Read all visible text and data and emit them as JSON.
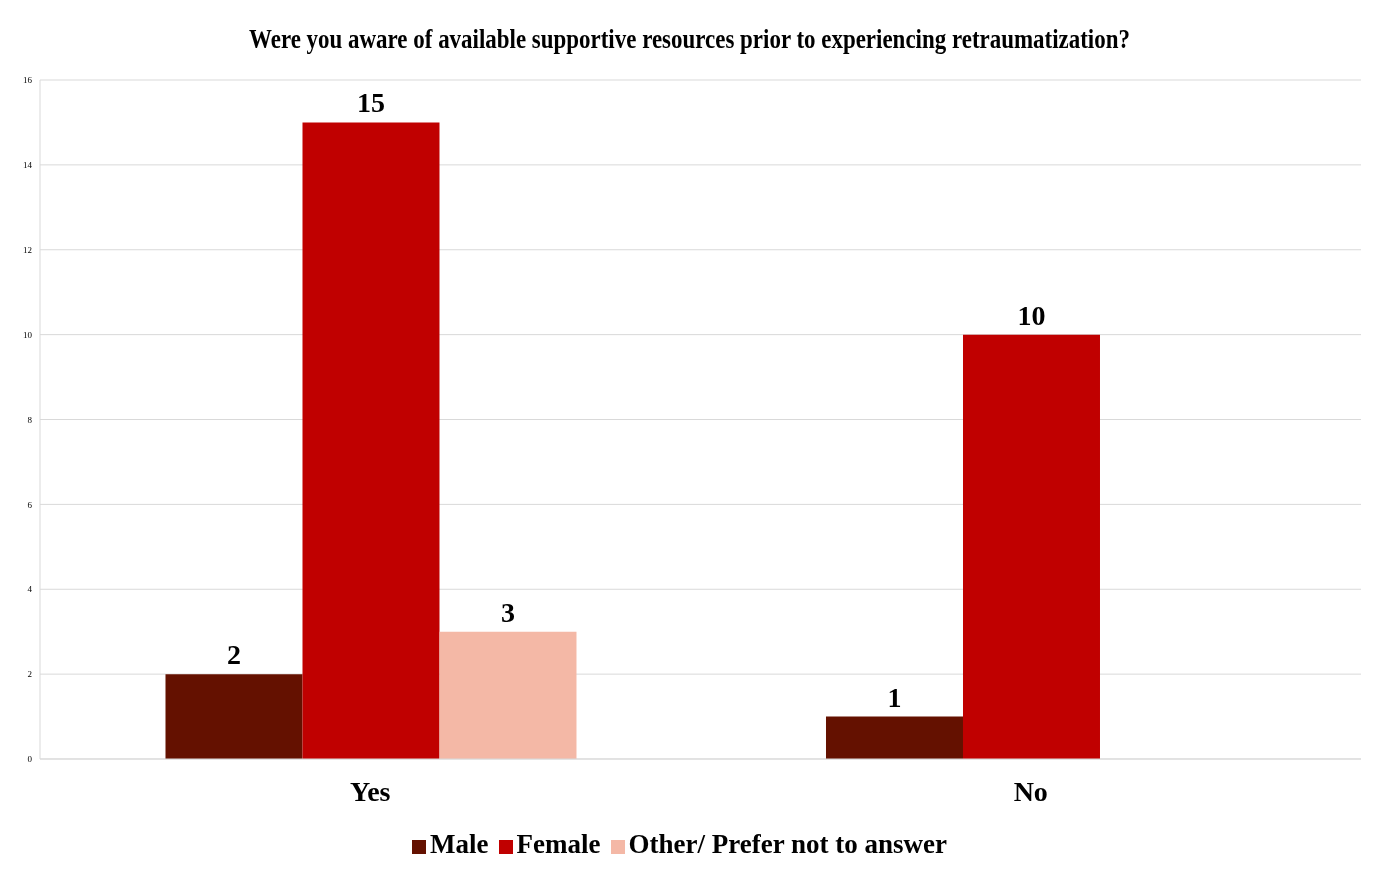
{
  "chart_data": {
    "type": "bar",
    "title": "Were you aware of available supportive resources prior to experiencing retraumatization?",
    "categories": [
      "Yes",
      "No"
    ],
    "series": [
      {
        "name": "Male",
        "color": "#641100",
        "values": [
          2,
          1
        ]
      },
      {
        "name": "Female",
        "color": "#c00000",
        "values": [
          15,
          10
        ]
      },
      {
        "name": "Other/ Prefer not to answer",
        "color": "#f4b8a6",
        "values": [
          3,
          null
        ]
      }
    ],
    "ylim": [
      0,
      16
    ],
    "yticks": [
      0,
      2,
      4,
      6,
      8,
      10,
      12,
      14,
      16
    ],
    "grid": "y",
    "legend": "bottom",
    "data_labels": true
  }
}
